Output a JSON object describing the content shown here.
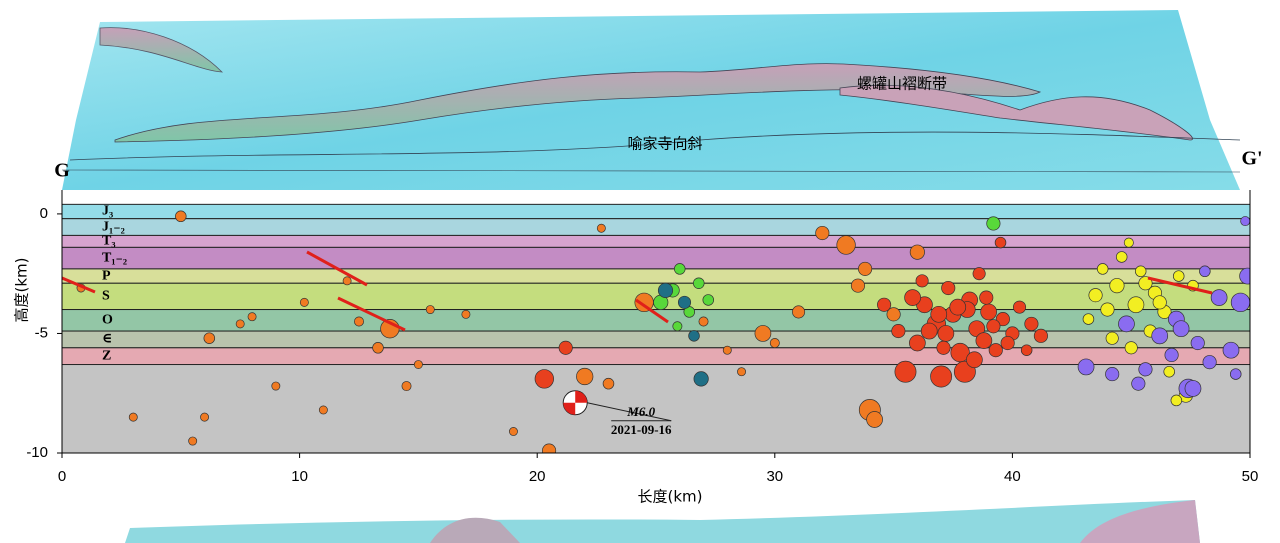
{
  "chart_data": {
    "type": "scatter",
    "xlabel": "长度(km)",
    "ylabel": "高度(km)",
    "xlim": [
      0,
      50
    ],
    "ylim": [
      -10,
      1
    ],
    "xticks": [
      0,
      10,
      20,
      30,
      40,
      50
    ],
    "yticks": [
      -10,
      -5,
      0
    ],
    "section_start": "G",
    "section_end": "G'",
    "map_labels": [
      "喻家寺向斜",
      "螺罐山褶断带"
    ],
    "strata": [
      {
        "label": "J₃",
        "top": 0.4,
        "bottom": -0.2,
        "color": "#94dce8"
      },
      {
        "label": "J₁₋₂",
        "top": -0.2,
        "bottom": -0.9,
        "color": "#a9d6df"
      },
      {
        "label": "T₃",
        "top": -0.9,
        "bottom": -1.4,
        "color": "#d7a3cf"
      },
      {
        "label": "T₁₋₂",
        "top": -1.4,
        "bottom": -2.3,
        "color": "#c38cc4"
      },
      {
        "label": "P",
        "top": -2.3,
        "bottom": -2.9,
        "color": "#d8df9a"
      },
      {
        "label": "S",
        "top": -2.9,
        "bottom": -4.0,
        "color": "#c4dd7e"
      },
      {
        "label": "O",
        "top": -4.0,
        "bottom": -4.9,
        "color": "#93c6a6"
      },
      {
        "label": "∈",
        "top": -4.9,
        "bottom": -5.6,
        "color": "#b9c3ad"
      },
      {
        "label": "Z",
        "top": -5.6,
        "bottom": -6.3,
        "color": "#e5a9b2"
      }
    ],
    "basement_color": "#c4c4c4",
    "series": [
      {
        "color": "#f07a22",
        "x": [
          0.8,
          5,
          6,
          6.2,
          8,
          10.2,
          12,
          12.5,
          13.3,
          13.8,
          14.5,
          15.5,
          17,
          20.5,
          22,
          23,
          24.5,
          27,
          28,
          29.5,
          31,
          32,
          33,
          33.5,
          34,
          34.2,
          35,
          36,
          5.5,
          9,
          11,
          15,
          19,
          30,
          33.8,
          22.7,
          28.6,
          3,
          7.5
        ],
        "y": [
          -3.1,
          -0.1,
          -8.5,
          -5.2,
          -4.3,
          -3.7,
          -2.8,
          -4.5,
          -5.6,
          -4.8,
          -7.2,
          -4.0,
          -4.2,
          -9.9,
          -6.8,
          -7.1,
          -3.7,
          -4.5,
          -5.7,
          -5.0,
          -4.1,
          -0.8,
          -1.3,
          -3.0,
          -8.2,
          -8.6,
          -4.2,
          -1.6,
          -9.5,
          -7.2,
          -8.2,
          -6.3,
          -9.1,
          -5.4,
          -2.3,
          -0.6,
          -6.6,
          -8.5,
          -4.6
        ],
        "magnitudes": [
          1,
          1.5,
          1,
          1.5,
          1,
          1,
          1,
          1.2,
          1.5,
          3,
          1.2,
          1,
          1,
          2,
          2.6,
          1.5,
          3,
          1.2,
          1,
          2.5,
          1.8,
          2,
          3,
          2,
          3.5,
          2.5,
          2,
          2.2,
          1,
          1,
          1,
          1,
          1,
          1.2,
          2,
          1,
          1,
          1,
          1
        ]
      },
      {
        "color": "#e8401e",
        "x": [
          20.3,
          21.2,
          35.5,
          36,
          36.3,
          36.8,
          37,
          37.2,
          37.5,
          37.8,
          38,
          38.2,
          38.5,
          38.8,
          39,
          39.3,
          39.6,
          40,
          40.3,
          40.8,
          41.2,
          35.8,
          36.5,
          37.3,
          38.1,
          38.9,
          39.8,
          36.9,
          37.7,
          38.4,
          39.2,
          35.2,
          34.6,
          40.6,
          36.2,
          38.6,
          37.1,
          39.5
        ],
        "y": [
          -6.9,
          -5.6,
          -6.6,
          -5.4,
          -3.8,
          -4.6,
          -6.8,
          -5.0,
          -4.2,
          -5.8,
          -6.6,
          -3.6,
          -4.8,
          -5.3,
          -4.1,
          -5.7,
          -4.4,
          -5.0,
          -3.9,
          -4.6,
          -5.1,
          -3.5,
          -4.9,
          -3.1,
          -4.0,
          -3.5,
          -5.4,
          -4.2,
          -3.9,
          -6.1,
          -4.7,
          -4.9,
          -3.8,
          -5.7,
          -2.8,
          -2.5,
          -5.6,
          -1.2
        ],
        "magnitudes": [
          3,
          2,
          3.5,
          2.5,
          2.5,
          3,
          3.5,
          2.5,
          2.5,
          3,
          3.5,
          2.5,
          2.5,
          2.5,
          2.5,
          2,
          2,
          2,
          1.8,
          2,
          2,
          2.5,
          2.5,
          2,
          2.5,
          2,
          2,
          2.5,
          2.5,
          2.5,
          2,
          2,
          2,
          1.5,
          1.8,
          1.8,
          2,
          1.5
        ]
      },
      {
        "color": "#f2ee22",
        "x": [
          43.5,
          44,
          44.4,
          44.8,
          45.2,
          45.6,
          46,
          46.4,
          43.8,
          44.6,
          45.4,
          46.2,
          47,
          47.6,
          44.2,
          45,
          45.8,
          46.6,
          47.3,
          43.2,
          44.9,
          46.9
        ],
        "y": [
          -3.4,
          -4.0,
          -3.0,
          -4.6,
          -3.8,
          -2.9,
          -3.3,
          -4.1,
          -2.3,
          -1.8,
          -2.4,
          -3.7,
          -2.6,
          -3.0,
          -5.2,
          -5.6,
          -4.9,
          -6.6,
          -7.6,
          -4.4,
          -1.2,
          -7.8
        ],
        "magnitudes": [
          2,
          2,
          2.2,
          2,
          2.5,
          2,
          2,
          2,
          1.5,
          1.5,
          1.5,
          2,
          1.5,
          1.5,
          1.8,
          1.8,
          1.8,
          1.5,
          2,
          1.5,
          1.2,
          1.5
        ]
      },
      {
        "color": "#8a6cf0",
        "x": [
          44.8,
          45.6,
          46.2,
          46.9,
          47.4,
          47.8,
          48.3,
          48.7,
          49.2,
          49.6,
          49.9,
          43.1,
          44.2,
          45.3,
          46.7,
          47.1,
          48.1,
          49.4,
          47.6,
          49.8
        ],
        "y": [
          -4.6,
          -6.5,
          -5.1,
          -4.4,
          -7.3,
          -5.4,
          -6.2,
          -3.5,
          -5.7,
          -3.7,
          -2.6,
          -6.4,
          -6.7,
          -7.1,
          -5.9,
          -4.8,
          -2.4,
          -6.7,
          -7.3,
          -0.3
        ],
        "magnitudes": [
          2.5,
          2,
          2.5,
          2.5,
          3,
          2,
          2,
          2.5,
          2.5,
          3,
          2.5,
          2.5,
          2,
          2,
          2,
          2.5,
          1.5,
          1.5,
          2.5,
          1.2
        ]
      },
      {
        "color": "#58d83a",
        "x": [
          25.2,
          25.7,
          26,
          26.4,
          27.2,
          26.8,
          25.9,
          39.2
        ],
        "y": [
          -3.7,
          -3.2,
          -2.3,
          -4.1,
          -3.6,
          -2.9,
          -4.7,
          -0.4
        ],
        "magnitudes": [
          2.2,
          2,
          1.5,
          1.5,
          1.5,
          1.5,
          1.2,
          2
        ]
      },
      {
        "color": "#1f6f86",
        "x": [
          25.4,
          26.2,
          26.6,
          26.9
        ],
        "y": [
          -3.2,
          -3.7,
          -5.1,
          -6.9
        ],
        "magnitudes": [
          2.2,
          1.8,
          1.5,
          2.2
        ]
      }
    ],
    "mainshock": {
      "x": 21.6,
      "y": -7.9,
      "label": "M6.0",
      "date": "2021-09-16"
    }
  }
}
